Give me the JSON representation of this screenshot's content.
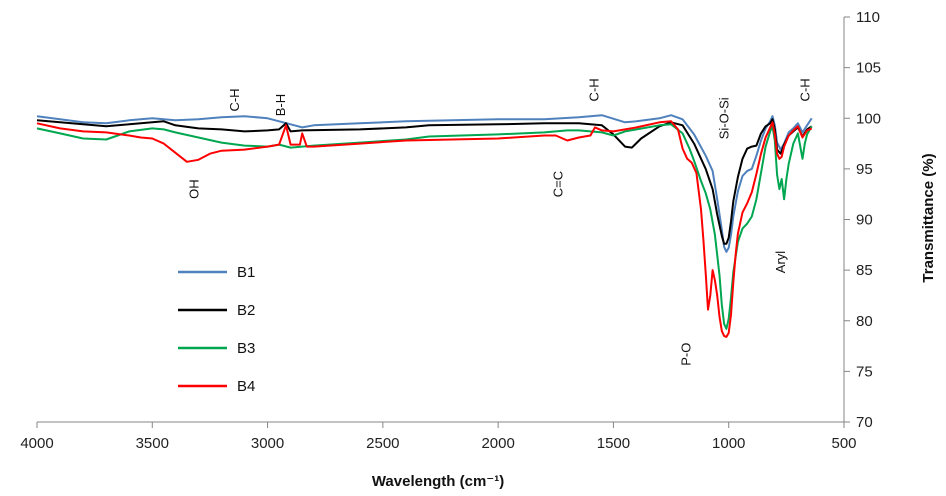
{
  "chart_data": {
    "type": "line",
    "title": "",
    "xlabel": "Wavelength (cm⁻¹)",
    "ylabel": "Transmittance (%)",
    "xlim": [
      4000,
      500
    ],
    "ylim": [
      70,
      110
    ],
    "x_reversed": true,
    "y_axis_side": "right",
    "grid": false,
    "legend_position": "lower-left",
    "x_ticks": [
      "4000",
      "3500",
      "3000",
      "2500",
      "2000",
      "1500",
      "1000",
      "500"
    ],
    "y_ticks": [
      "70",
      "75",
      "80",
      "85",
      "90",
      "95",
      "100",
      "105",
      "110"
    ],
    "annotations": [
      {
        "text": "C-H",
        "x": 3125,
        "y": 101.8
      },
      {
        "text": "B-H",
        "x": 2925,
        "y": 101.3
      },
      {
        "text": "OH",
        "x": 3300,
        "y": 93.0
      },
      {
        "text": "C=C",
        "x": 1720,
        "y": 93.5
      },
      {
        "text": "C-H",
        "x": 1565,
        "y": 102.8
      },
      {
        "text": "Si-O-Si",
        "x": 1000,
        "y": 100.0
      },
      {
        "text": "C-H",
        "x": 650,
        "y": 102.8
      },
      {
        "text": "Aryl",
        "x": 755,
        "y": 85.8
      },
      {
        "text": "P-O",
        "x": 1165,
        "y": 76.7
      }
    ],
    "series": [
      {
        "name": "B1",
        "color": "#4f81bd",
        "points": [
          [
            4000,
            100.2
          ],
          [
            3900,
            99.9
          ],
          [
            3800,
            99.6
          ],
          [
            3700,
            99.5
          ],
          [
            3600,
            99.8
          ],
          [
            3500,
            100.0
          ],
          [
            3400,
            99.8
          ],
          [
            3300,
            99.9
          ],
          [
            3200,
            100.1
          ],
          [
            3100,
            100.2
          ],
          [
            3000,
            100.0
          ],
          [
            2950,
            99.7
          ],
          [
            2900,
            99.4
          ],
          [
            2850,
            99.1
          ],
          [
            2800,
            99.3
          ],
          [
            2600,
            99.5
          ],
          [
            2400,
            99.7
          ],
          [
            2000,
            99.9
          ],
          [
            1800,
            99.9
          ],
          [
            1650,
            100.1
          ],
          [
            1550,
            100.3
          ],
          [
            1450,
            99.6
          ],
          [
            1400,
            99.7
          ],
          [
            1300,
            100.0
          ],
          [
            1250,
            100.3
          ],
          [
            1200,
            99.9
          ],
          [
            1150,
            98.4
          ],
          [
            1100,
            96.3
          ],
          [
            1070,
            94.8
          ],
          [
            1050,
            92.0
          ],
          [
            1030,
            89.0
          ],
          [
            1020,
            87.3
          ],
          [
            1010,
            86.8
          ],
          [
            1000,
            87.2
          ],
          [
            990,
            88.5
          ],
          [
            980,
            90.3
          ],
          [
            960,
            92.8
          ],
          [
            940,
            94.3
          ],
          [
            920,
            94.8
          ],
          [
            900,
            95.0
          ],
          [
            880,
            96.3
          ],
          [
            860,
            97.8
          ],
          [
            840,
            99.0
          ],
          [
            820,
            99.7
          ],
          [
            810,
            100.2
          ],
          [
            800,
            99.3
          ],
          [
            790,
            97.6
          ],
          [
            775,
            96.9
          ],
          [
            760,
            97.5
          ],
          [
            740,
            98.6
          ],
          [
            720,
            99.0
          ],
          [
            700,
            99.5
          ],
          [
            680,
            98.6
          ],
          [
            660,
            99.3
          ],
          [
            640,
            100.0
          ]
        ]
      },
      {
        "name": "B2",
        "color": "#000000",
        "points": [
          [
            4000,
            99.8
          ],
          [
            3900,
            99.6
          ],
          [
            3800,
            99.4
          ],
          [
            3700,
            99.2
          ],
          [
            3600,
            99.4
          ],
          [
            3500,
            99.6
          ],
          [
            3450,
            99.7
          ],
          [
            3400,
            99.3
          ],
          [
            3300,
            99.0
          ],
          [
            3200,
            98.9
          ],
          [
            3100,
            98.7
          ],
          [
            3000,
            98.8
          ],
          [
            2950,
            98.9
          ],
          [
            2920,
            99.5
          ],
          [
            2900,
            98.7
          ],
          [
            2850,
            98.8
          ],
          [
            2600,
            98.9
          ],
          [
            2400,
            99.1
          ],
          [
            2300,
            99.3
          ],
          [
            2000,
            99.4
          ],
          [
            1800,
            99.5
          ],
          [
            1650,
            99.5
          ],
          [
            1550,
            99.3
          ],
          [
            1500,
            98.4
          ],
          [
            1450,
            97.2
          ],
          [
            1420,
            97.1
          ],
          [
            1380,
            98.0
          ],
          [
            1300,
            99.2
          ],
          [
            1250,
            99.6
          ],
          [
            1200,
            99.3
          ],
          [
            1150,
            97.5
          ],
          [
            1100,
            95.0
          ],
          [
            1070,
            93.0
          ],
          [
            1050,
            90.5
          ],
          [
            1030,
            88.4
          ],
          [
            1020,
            87.6
          ],
          [
            1010,
            87.6
          ],
          [
            1000,
            88.2
          ],
          [
            990,
            89.8
          ],
          [
            980,
            91.8
          ],
          [
            960,
            94.2
          ],
          [
            940,
            96.0
          ],
          [
            920,
            97.0
          ],
          [
            900,
            97.2
          ],
          [
            880,
            97.3
          ],
          [
            860,
            98.5
          ],
          [
            840,
            99.2
          ],
          [
            820,
            99.5
          ],
          [
            810,
            99.9
          ],
          [
            800,
            98.9
          ],
          [
            790,
            96.9
          ],
          [
            775,
            96.5
          ],
          [
            760,
            97.4
          ],
          [
            740,
            98.3
          ],
          [
            720,
            98.7
          ],
          [
            700,
            99.1
          ],
          [
            680,
            98.2
          ],
          [
            660,
            98.9
          ],
          [
            640,
            99.2
          ]
        ]
      },
      {
        "name": "B3",
        "color": "#00a650",
        "points": [
          [
            4000,
            99.0
          ],
          [
            3900,
            98.5
          ],
          [
            3800,
            98.0
          ],
          [
            3700,
            97.9
          ],
          [
            3650,
            98.3
          ],
          [
            3600,
            98.7
          ],
          [
            3500,
            99.0
          ],
          [
            3450,
            98.9
          ],
          [
            3400,
            98.6
          ],
          [
            3300,
            98.1
          ],
          [
            3200,
            97.6
          ],
          [
            3100,
            97.3
          ],
          [
            3000,
            97.2
          ],
          [
            2950,
            97.4
          ],
          [
            2900,
            97.1
          ],
          [
            2800,
            97.3
          ],
          [
            2600,
            97.6
          ],
          [
            2400,
            97.9
          ],
          [
            2300,
            98.2
          ],
          [
            2000,
            98.4
          ],
          [
            1800,
            98.6
          ],
          [
            1700,
            98.8
          ],
          [
            1650,
            98.8
          ],
          [
            1600,
            98.7
          ],
          [
            1550,
            98.6
          ],
          [
            1500,
            98.3
          ],
          [
            1450,
            98.7
          ],
          [
            1400,
            98.9
          ],
          [
            1300,
            99.3
          ],
          [
            1250,
            99.4
          ],
          [
            1200,
            98.5
          ],
          [
            1170,
            97.0
          ],
          [
            1150,
            95.8
          ],
          [
            1120,
            93.8
          ],
          [
            1100,
            92.6
          ],
          [
            1080,
            91.0
          ],
          [
            1060,
            88.5
          ],
          [
            1040,
            84.5
          ],
          [
            1030,
            81.6
          ],
          [
            1020,
            79.7
          ],
          [
            1010,
            79.2
          ],
          [
            1000,
            80.2
          ],
          [
            990,
            82.3
          ],
          [
            980,
            84.8
          ],
          [
            960,
            87.8
          ],
          [
            940,
            89.1
          ],
          [
            920,
            89.6
          ],
          [
            900,
            90.3
          ],
          [
            880,
            92.0
          ],
          [
            860,
            94.6
          ],
          [
            840,
            97.2
          ],
          [
            820,
            98.7
          ],
          [
            810,
            99.2
          ],
          [
            800,
            97.8
          ],
          [
            790,
            94.4
          ],
          [
            780,
            93.0
          ],
          [
            770,
            94.0
          ],
          [
            760,
            92.0
          ],
          [
            750,
            94.0
          ],
          [
            740,
            95.5
          ],
          [
            720,
            97.5
          ],
          [
            700,
            98.5
          ],
          [
            680,
            96.0
          ],
          [
            670,
            97.5
          ],
          [
            660,
            98.4
          ],
          [
            640,
            99.2
          ]
        ]
      },
      {
        "name": "B4",
        "color": "#ff0000",
        "points": [
          [
            4000,
            99.5
          ],
          [
            3900,
            99.0
          ],
          [
            3800,
            98.7
          ],
          [
            3700,
            98.6
          ],
          [
            3600,
            98.3
          ],
          [
            3550,
            98.1
          ],
          [
            3500,
            98.0
          ],
          [
            3450,
            97.5
          ],
          [
            3400,
            96.6
          ],
          [
            3350,
            95.7
          ],
          [
            3300,
            95.9
          ],
          [
            3250,
            96.5
          ],
          [
            3200,
            96.8
          ],
          [
            3100,
            96.9
          ],
          [
            3000,
            97.2
          ],
          [
            2950,
            97.4
          ],
          [
            2920,
            99.3
          ],
          [
            2900,
            97.4
          ],
          [
            2860,
            97.4
          ],
          [
            2850,
            98.5
          ],
          [
            2830,
            97.2
          ],
          [
            2800,
            97.2
          ],
          [
            2600,
            97.5
          ],
          [
            2400,
            97.8
          ],
          [
            2000,
            98.0
          ],
          [
            1800,
            98.3
          ],
          [
            1750,
            98.3
          ],
          [
            1720,
            98.0
          ],
          [
            1700,
            97.8
          ],
          [
            1650,
            98.1
          ],
          [
            1600,
            98.3
          ],
          [
            1580,
            99.1
          ],
          [
            1550,
            98.8
          ],
          [
            1500,
            98.7
          ],
          [
            1400,
            99.1
          ],
          [
            1300,
            99.6
          ],
          [
            1250,
            99.7
          ],
          [
            1220,
            98.9
          ],
          [
            1200,
            97.0
          ],
          [
            1180,
            96.0
          ],
          [
            1160,
            95.6
          ],
          [
            1140,
            94.6
          ],
          [
            1120,
            91.0
          ],
          [
            1110,
            88.0
          ],
          [
            1100,
            84.7
          ],
          [
            1090,
            81.1
          ],
          [
            1080,
            82.5
          ],
          [
            1070,
            85.0
          ],
          [
            1060,
            84.0
          ],
          [
            1050,
            82.5
          ],
          [
            1040,
            80.4
          ],
          [
            1030,
            79.0
          ],
          [
            1020,
            78.5
          ],
          [
            1010,
            78.4
          ],
          [
            1000,
            78.8
          ],
          [
            990,
            80.6
          ],
          [
            980,
            83.8
          ],
          [
            970,
            86.5
          ],
          [
            960,
            88.6
          ],
          [
            940,
            90.7
          ],
          [
            920,
            91.6
          ],
          [
            900,
            92.7
          ],
          [
            880,
            94.5
          ],
          [
            860,
            96.5
          ],
          [
            840,
            98.1
          ],
          [
            820,
            99.1
          ],
          [
            810,
            99.6
          ],
          [
            800,
            98.4
          ],
          [
            790,
            96.5
          ],
          [
            780,
            96.0
          ],
          [
            770,
            96.2
          ],
          [
            760,
            97.2
          ],
          [
            740,
            98.3
          ],
          [
            720,
            98.8
          ],
          [
            700,
            99.2
          ],
          [
            680,
            98.1
          ],
          [
            660,
            98.8
          ],
          [
            640,
            99.0
          ]
        ]
      }
    ]
  }
}
